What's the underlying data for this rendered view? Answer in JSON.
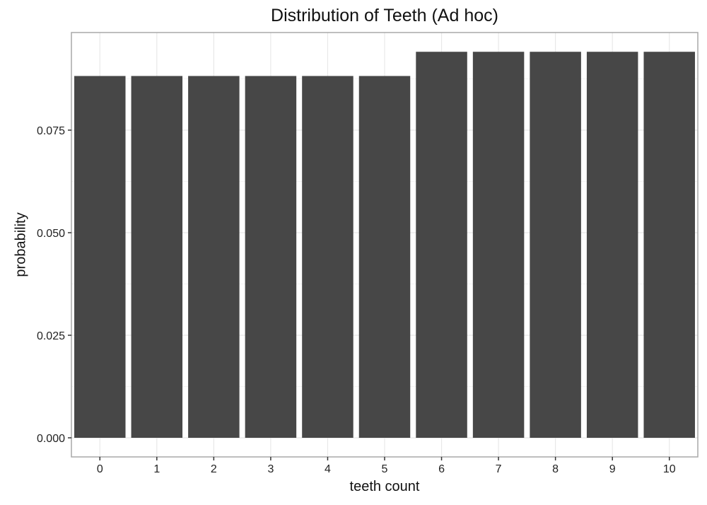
{
  "chart_data": {
    "type": "bar",
    "title": "Distribution of Teeth (Ad hoc)",
    "xlabel": "teeth count",
    "ylabel": "probability",
    "categories": [
      "0",
      "1",
      "2",
      "3",
      "4",
      "5",
      "6",
      "7",
      "8",
      "9",
      "10"
    ],
    "values": [
      0.0882,
      0.0882,
      0.0882,
      0.0882,
      0.0882,
      0.0882,
      0.0941,
      0.0941,
      0.0941,
      0.0941,
      0.0941
    ],
    "yticks": [
      "0.000",
      "0.025",
      "0.050",
      "0.075"
    ],
    "ylim": [
      -0.0045,
      0.1
    ],
    "grid": true,
    "bar_color": "#474747"
  }
}
